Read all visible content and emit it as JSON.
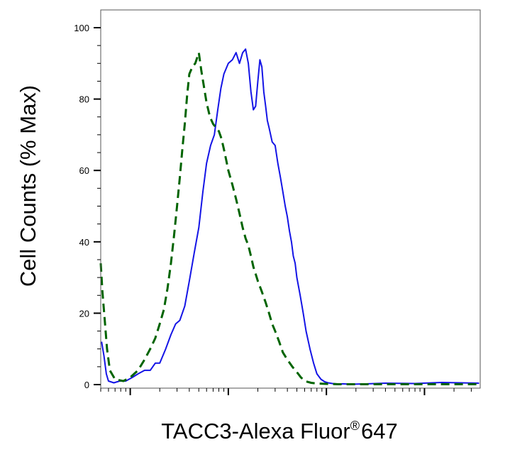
{
  "chart_data": {
    "type": "line",
    "title": "",
    "xlabel": "TACC3-Alexa Fluor",
    "xlabel_superscript": "®",
    "xlabel_suffix": "647",
    "ylabel": "Cell Counts (% Max)",
    "xscale": "log",
    "xlim": [
      0.5,
      3700
    ],
    "ylim": [
      0,
      105
    ],
    "y_ticks": [
      0,
      20,
      40,
      60,
      80,
      100
    ],
    "y_tick_labels": [
      "0",
      "20",
      "40",
      "60",
      "80",
      "100"
    ],
    "x_tick_labels": [],
    "grid": false,
    "legend": "none",
    "colors": {
      "frame": "#555555",
      "axis": "#000000"
    },
    "series": [
      {
        "color": "#1414e6",
        "style": "solid",
        "x": [
          0.51,
          0.54,
          0.57,
          0.6,
          0.68,
          0.78,
          0.9,
          1.05,
          1.2,
          1.4,
          1.6,
          1.8,
          2.0,
          2.3,
          2.6,
          2.9,
          3.2,
          3.6,
          4.0,
          4.5,
          5.0,
          5.5,
          6.0,
          6.6,
          7.2,
          7.8,
          8.4,
          9.0,
          10,
          11,
          12,
          13,
          14,
          15,
          16,
          17,
          18,
          19,
          20,
          21,
          22,
          23,
          24,
          25,
          26,
          28,
          30,
          32,
          34,
          36,
          38,
          40,
          42,
          44,
          46,
          48,
          50,
          54,
          58,
          62,
          68,
          74,
          80,
          88,
          96,
          104,
          115,
          130,
          150,
          180,
          250,
          400,
          800,
          1500,
          3600
        ],
        "y": [
          12,
          8,
          3,
          1,
          0.5,
          1,
          1,
          2,
          3,
          4,
          4,
          6,
          6,
          10,
          14,
          17,
          18,
          22,
          29,
          37,
          44,
          54,
          62,
          67,
          70,
          77,
          83,
          87,
          90,
          91,
          93,
          90,
          93,
          94,
          90,
          82,
          77,
          78,
          85,
          91,
          89,
          82,
          78,
          74,
          72,
          68,
          67,
          62,
          58,
          54,
          50,
          47,
          43,
          40,
          36,
          34,
          30,
          25,
          20,
          15,
          10,
          6,
          3,
          1.5,
          0.8,
          0.5,
          0.3,
          0.2,
          0.2,
          0.1,
          0.2,
          0.4,
          0.3,
          0.6,
          0.4
        ]
      },
      {
        "color": "#006400",
        "style": "dashed",
        "x": [
          0.5,
          0.52,
          0.55,
          0.58,
          0.62,
          0.7,
          0.85,
          1.0,
          1.2,
          1.4,
          1.6,
          1.8,
          2.0,
          2.2,
          2.4,
          2.6,
          2.8,
          3.0,
          3.2,
          3.4,
          3.6,
          3.8,
          4.0,
          4.3,
          4.6,
          5.0,
          5.3,
          5.6,
          6.0,
          6.5,
          7.0,
          7.5,
          8.0,
          8.5,
          9.0,
          9.5,
          10,
          11,
          12,
          13,
          14,
          15,
          16,
          17,
          18,
          19,
          20,
          22,
          24,
          26,
          28,
          30,
          33,
          36,
          40,
          45,
          50,
          55,
          60,
          70,
          80,
          100,
          130,
          200,
          500,
          1500,
          3600
        ],
        "y": [
          34,
          26,
          18,
          10,
          4,
          1.5,
          1,
          2,
          4,
          7,
          10,
          13,
          17,
          21,
          27,
          34,
          42,
          50,
          58,
          66,
          73,
          81,
          87,
          89,
          90,
          93,
          88,
          84,
          79,
          75,
          73,
          72,
          71,
          69,
          66,
          63,
          60,
          56,
          52,
          48,
          44,
          41,
          39,
          36,
          33,
          31,
          29,
          26,
          23,
          20,
          17,
          15,
          12,
          9,
          7,
          5,
          3.5,
          2,
          1,
          0.5,
          0.3,
          0.2,
          0.1,
          0.1,
          0.1,
          0.1,
          0.1
        ]
      }
    ]
  }
}
